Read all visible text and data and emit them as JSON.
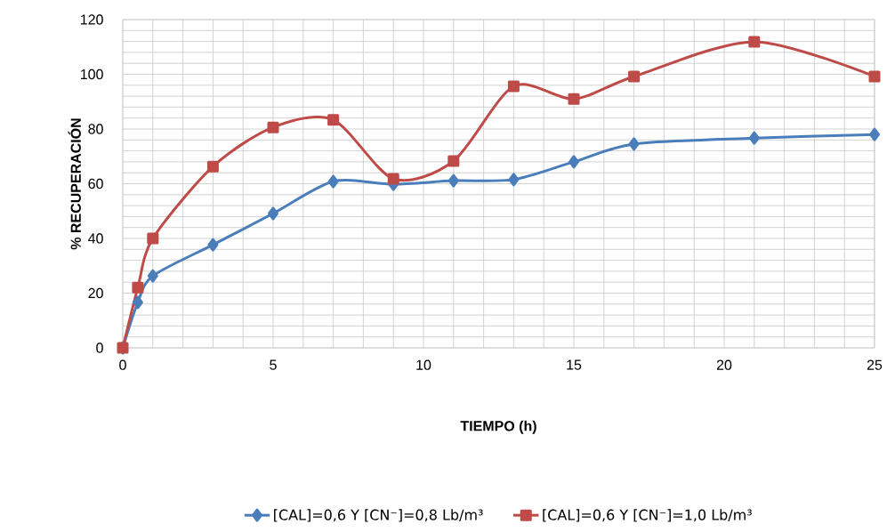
{
  "chart_data": {
    "type": "line",
    "xlabel": "TIEMPO (h)",
    "ylabel": "% RECUPERACIÓN",
    "x": [
      0,
      0.5,
      1,
      3,
      5,
      7,
      9,
      11,
      13,
      15,
      17,
      21,
      25
    ],
    "series": [
      {
        "name": "[CAL]=0,6 Y [CN⁻]=0,8 Lb/m³",
        "color": "#4a7ebb",
        "marker": "diamond",
        "values": [
          0,
          16.6,
          26.3,
          37.7,
          49.1,
          60.8,
          59.8,
          61.1,
          61.5,
          68,
          74.5,
          76.7,
          78
        ]
      },
      {
        "name": "[CAL]=0,6 Y [CN⁻]=1,0 Lb/m³",
        "color": "#be4b48",
        "marker": "square",
        "values": [
          0,
          22,
          40,
          66.3,
          80.6,
          83.3,
          61.8,
          68.3,
          95.6,
          91,
          99.2,
          111.9,
          99.2
        ]
      }
    ],
    "xlim": [
      0,
      25
    ],
    "xticks": [
      0,
      5,
      10,
      15,
      20,
      25
    ],
    "ylim": [
      0,
      120
    ],
    "yticks": [
      0,
      20,
      40,
      60,
      80,
      100,
      120
    ],
    "grid": true,
    "legend": "bottom",
    "line_style": "solid"
  }
}
